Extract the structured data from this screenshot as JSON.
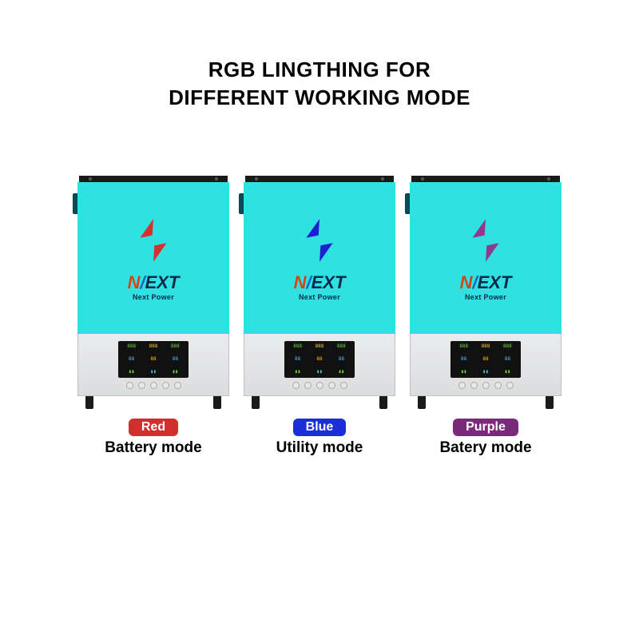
{
  "title_line1": "RGB LINGTHING FOR",
  "title_line2": "DIFFERENT WORKING MODE",
  "panel_background": "#2fe1e1",
  "brand_text": "NEXT",
  "subbrand_text": "Next Power",
  "devices": [
    {
      "logo_color": "#d8302a",
      "badge_text": "Red",
      "badge_bg": "#d22e2e",
      "mode_text": "Battery mode"
    },
    {
      "logo_color": "#1f1fd1",
      "badge_text": "Blue",
      "badge_bg": "#1a2fd6",
      "mode_text": "Utility mode"
    },
    {
      "logo_color": "#8e3a8e",
      "badge_text": "Purple",
      "badge_bg": "#7b2a7b",
      "mode_text": "Batery mode"
    }
  ]
}
